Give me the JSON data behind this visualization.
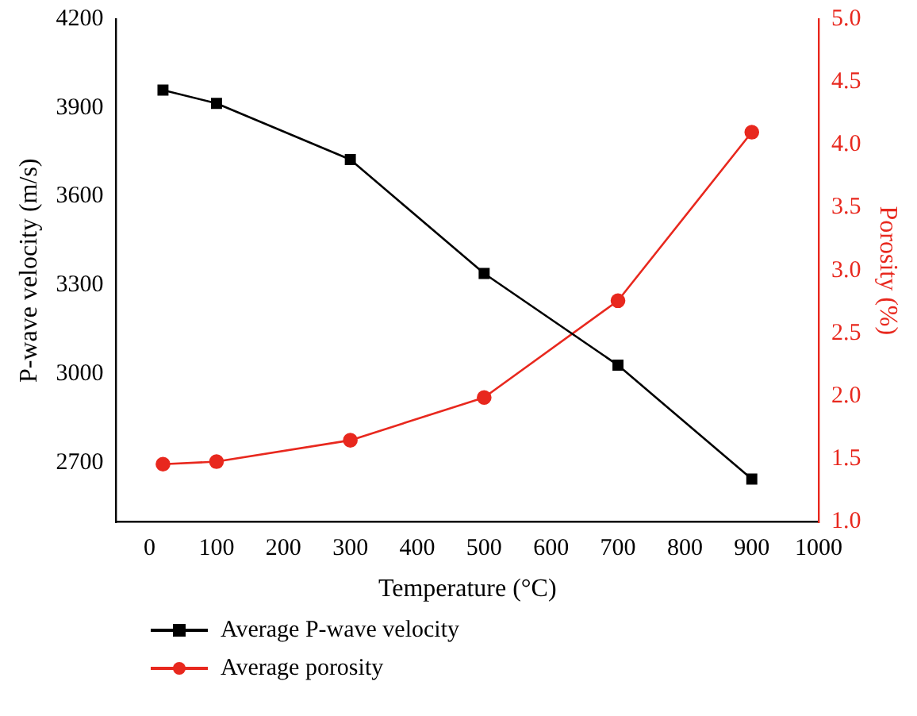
{
  "chart_data": {
    "type": "line",
    "xlabel": "Temperature (°C)",
    "ylabel": "P-wave velocity (m/s)",
    "y2label": "Porosity (%)",
    "x": [
      20,
      100,
      300,
      500,
      700,
      900
    ],
    "xlim": [
      -50,
      1000
    ],
    "xticks": [
      0,
      100,
      200,
      300,
      400,
      500,
      600,
      700,
      800,
      900,
      1000
    ],
    "ylim": [
      2500,
      4200
    ],
    "yticks": [
      2700,
      3000,
      3300,
      3600,
      3900,
      4200
    ],
    "y2lim": [
      1.0,
      5.0
    ],
    "y2ticks": [
      {
        "value": 1.0,
        "label": "1.0"
      },
      {
        "value": 1.5,
        "label": "1.5"
      },
      {
        "value": 2.0,
        "label": "2.0"
      },
      {
        "value": 2.5,
        "label": "2.5"
      },
      {
        "value": 3.0,
        "label": "3.0"
      },
      {
        "value": 3.5,
        "label": "3.5"
      },
      {
        "value": 4.0,
        "label": "4.0"
      },
      {
        "value": 4.5,
        "label": "4.5"
      },
      {
        "value": 5.0,
        "label": "5.0"
      }
    ],
    "series": [
      {
        "name": "Average P-wave velocity",
        "color": "#000000",
        "values": [
          3960,
          3915,
          3725,
          3340,
          3030,
          2645
        ],
        "marker": "square"
      },
      {
        "name": "Average porosity",
        "color": "#e8281e",
        "values": [
          1.46,
          1.48,
          1.65,
          1.99,
          2.76,
          4.1
        ],
        "axis": "y2",
        "marker": "circle"
      }
    ],
    "legend": "bottom",
    "grid": false,
    "line_style": "solid"
  }
}
